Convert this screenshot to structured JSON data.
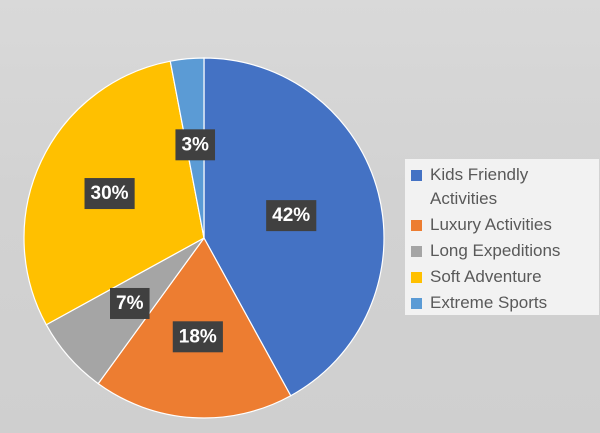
{
  "chart_data": {
    "type": "pie",
    "title": "",
    "slices": [
      {
        "name": "Kids Friendly Activities",
        "value": 42,
        "label": "42%",
        "color": "#4472c4"
      },
      {
        "name": "Luxury Activities",
        "value": 18,
        "label": "18%",
        "color": "#ed7d31"
      },
      {
        "name": "Long Expeditions",
        "value": 7,
        "label": "7%",
        "color": "#a5a5a5"
      },
      {
        "name": "Soft Adventure",
        "value": 30,
        "label": "30%",
        "color": "#ffc000"
      },
      {
        "name": "Extreme Sports",
        "value": 3,
        "label": "3%",
        "color": "#5b9bd5"
      }
    ],
    "legend": {
      "position": "right",
      "items": [
        {
          "label": "Kids Friendly Activities",
          "color": "#4472c4"
        },
        {
          "label": "Luxury Activities",
          "color": "#ed7d31"
        },
        {
          "label": "Long Expeditions",
          "color": "#a5a5a5"
        },
        {
          "label": "Soft Adventure",
          "color": "#ffc000"
        },
        {
          "label": "Extreme Sports",
          "color": "#5b9bd5"
        }
      ]
    },
    "data_label_background": "#404040",
    "background": "#d6d6d6"
  }
}
